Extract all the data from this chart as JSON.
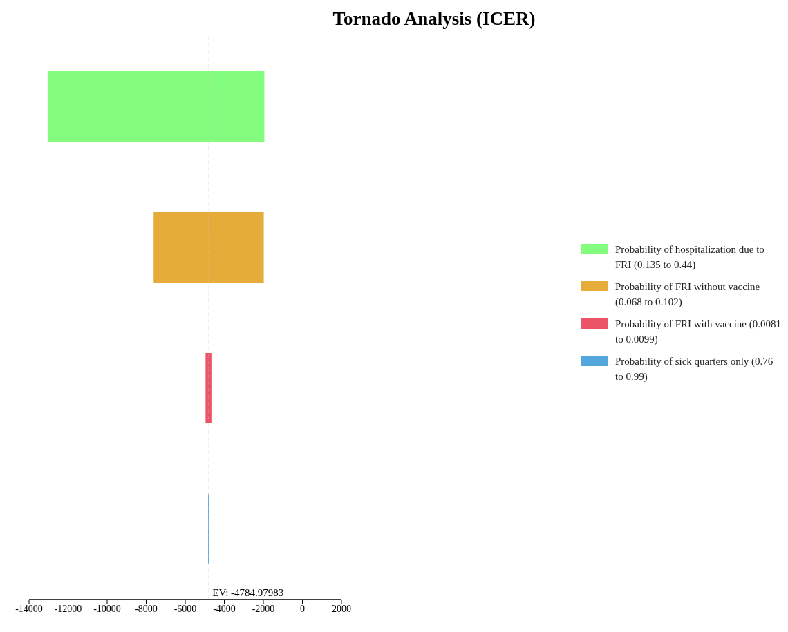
{
  "chart_data": {
    "type": "bar",
    "title": "Tornado Analysis (ICER)",
    "orientation": "horizontal",
    "categories": [
      null,
      null,
      null,
      null
    ],
    "series": [
      {
        "name": "Probability of hospitalization due to FRI (0.135 to 0.44)",
        "color": "#84fd7f",
        "values": [
          11100,
          null,
          null,
          null
        ],
        "base": [
          -13050,
          null,
          null,
          null
        ]
      },
      {
        "name": "Probability of FRI without vaccine (0.068 to 0.102)",
        "color": "#e5ac39",
        "values": [
          null,
          5640,
          null,
          null
        ],
        "base": [
          null,
          -7620,
          null,
          null
        ]
      },
      {
        "name": "Probability of FRI with vaccine (0.0081 to 0.0099)",
        "color": "#eb5466",
        "values": [
          null,
          null,
          300,
          null
        ],
        "base": [
          null,
          null,
          -4960,
          null
        ]
      },
      {
        "name": "Probability of sick quarters only (0.76 to 0.99)",
        "color": "#53a7dc",
        "values": [
          null,
          null,
          null,
          45
        ],
        "base": [
          null,
          null,
          null,
          -4830
        ]
      }
    ],
    "xlim": [
      -14000,
      2000
    ],
    "xticks": [
      -14000,
      -12000,
      -10000,
      -8000,
      -6000,
      -4000,
      -2000,
      0,
      2000
    ],
    "ref_lines": [
      {
        "axis": "x",
        "value": -4784.97983,
        "label": "EV: -4784.97983",
        "color": "#c8c8c8",
        "line_style": "dashed"
      }
    ],
    "legend": "right"
  }
}
